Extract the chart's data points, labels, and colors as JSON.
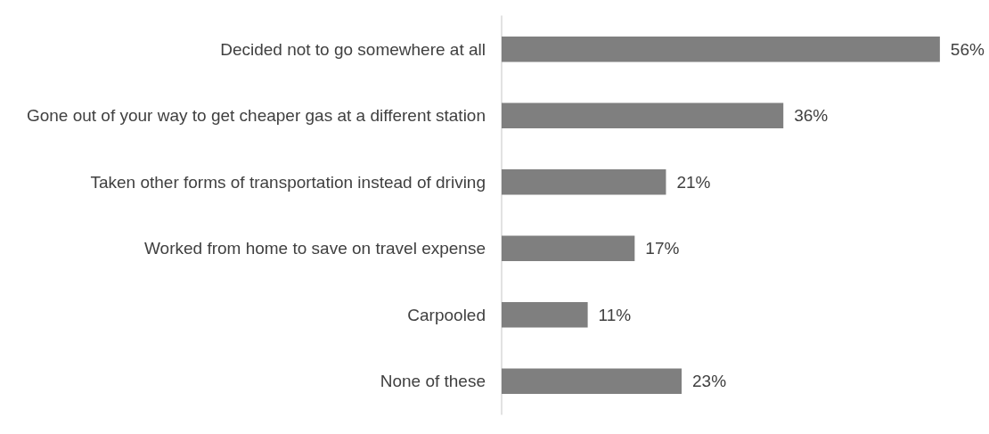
{
  "chart_data": {
    "type": "bar",
    "orientation": "horizontal",
    "categories": [
      "Decided not to go somewhere at all",
      "Gone out of your way to get cheaper gas at a different station",
      "Taken other forms of transportation instead of driving",
      "Worked from home to save on travel expense",
      "Carpooled",
      "None of these"
    ],
    "values": [
      56,
      36,
      21,
      17,
      11,
      23
    ],
    "value_labels": [
      "56%",
      "36%",
      "21%",
      "17%",
      "11%",
      "23%"
    ],
    "color": "#7f7f7f"
  }
}
